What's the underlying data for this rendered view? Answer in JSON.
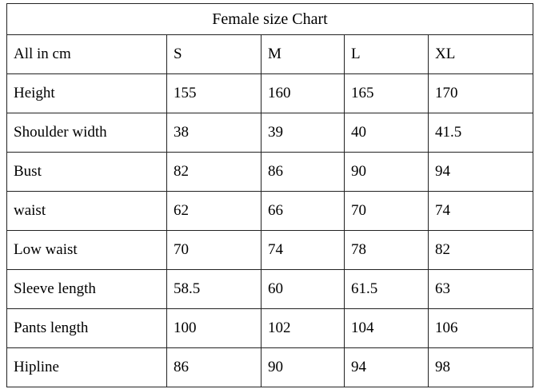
{
  "table": {
    "title": "Female size Chart",
    "header": [
      "All in cm",
      "S",
      "M",
      "L",
      "XL"
    ],
    "rows": [
      [
        "Height",
        "155",
        "160",
        "165",
        "170"
      ],
      [
        "Shoulder width",
        "38",
        "39",
        "40",
        "41.5"
      ],
      [
        "Bust",
        "82",
        "86",
        "90",
        "94"
      ],
      [
        "waist",
        "62",
        "66",
        "70",
        "74"
      ],
      [
        "Low waist",
        "70",
        "74",
        "78",
        "82"
      ],
      [
        "Sleeve length",
        "58.5",
        "60",
        "61.5",
        "63"
      ],
      [
        "Pants length",
        "100",
        "102",
        "104",
        "106"
      ],
      [
        "Hipline",
        "86",
        "90",
        "94",
        "98"
      ]
    ]
  },
  "chart_data": {
    "type": "table",
    "title": "Female size Chart",
    "unit": "cm",
    "columns": [
      "All in cm",
      "S",
      "M",
      "L",
      "XL"
    ],
    "rows": [
      {
        "measurement": "Height",
        "S": 155,
        "M": 160,
        "L": 165,
        "XL": 170
      },
      {
        "measurement": "Shoulder width",
        "S": 38,
        "M": 39,
        "L": 40,
        "XL": 41.5
      },
      {
        "measurement": "Bust",
        "S": 82,
        "M": 86,
        "L": 90,
        "XL": 94
      },
      {
        "measurement": "waist",
        "S": 62,
        "M": 66,
        "L": 70,
        "XL": 74
      },
      {
        "measurement": "Low waist",
        "S": 70,
        "M": 74,
        "L": 78,
        "XL": 82
      },
      {
        "measurement": "Sleeve length",
        "S": 58.5,
        "M": 60,
        "L": 61.5,
        "XL": 63
      },
      {
        "measurement": "Pants length",
        "S": 100,
        "M": 102,
        "L": 104,
        "XL": 106
      },
      {
        "measurement": "Hipline",
        "S": 86,
        "M": 90,
        "L": 94,
        "XL": 98
      }
    ]
  }
}
